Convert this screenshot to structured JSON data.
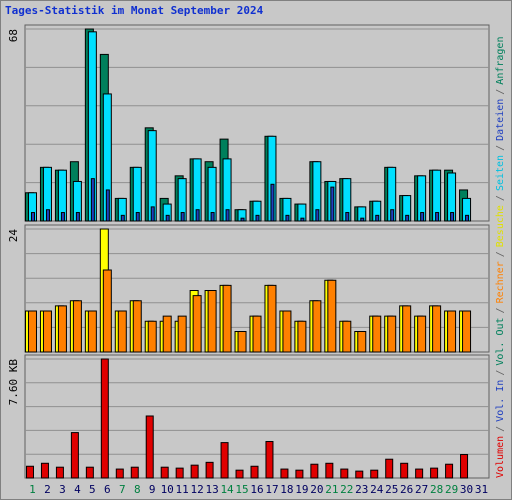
{
  "chart_data": {
    "type": "bar",
    "title": "Tages-Statistik im Monat September 2024",
    "categories": [
      "1",
      "2",
      "3",
      "4",
      "5",
      "6",
      "7",
      "8",
      "9",
      "10",
      "11",
      "12",
      "13",
      "14",
      "15",
      "16",
      "17",
      "18",
      "19",
      "20",
      "21",
      "22",
      "23",
      "24",
      "25",
      "26",
      "27",
      "28",
      "29",
      "30",
      "31"
    ],
    "category_colors": [
      "#008040",
      "#000060",
      "#000060",
      "#000060",
      "#000060",
      "#000060",
      "#008040",
      "#008040",
      "#000060",
      "#000060",
      "#000060",
      "#000060",
      "#000060",
      "#008040",
      "#008040",
      "#000060",
      "#000060",
      "#000060",
      "#000060",
      "#000060",
      "#008040",
      "#008040",
      "#000060",
      "#000060",
      "#000060",
      "#000060",
      "#000060",
      "#008040",
      "#008040",
      "#000060",
      "#000060"
    ],
    "panels": [
      {
        "ylim": [
          0,
          68
        ],
        "yticks": [
          68
        ],
        "series": [
          {
            "name": "Anfragen",
            "color": "#00805c",
            "values": [
              10,
              19,
              18,
              21,
              68,
              59,
              8,
              19,
              33,
              8,
              16,
              22,
              21,
              29,
              4,
              7,
              30,
              8,
              6,
              21,
              14,
              15,
              5,
              7,
              19,
              9,
              16,
              18,
              18,
              11,
              null
            ]
          },
          {
            "name": "Dateien",
            "color": "#00e0ff",
            "values": [
              10,
              19,
              18,
              14,
              67,
              45,
              8,
              19,
              32,
              6,
              15,
              22,
              19,
              22,
              4,
              7,
              30,
              8,
              6,
              21,
              14,
              15,
              5,
              7,
              19,
              9,
              16,
              18,
              17,
              8,
              null
            ]
          },
          {
            "name": "Seiten",
            "color": "#2040c0",
            "values": [
              3,
              4,
              3,
              3,
              15,
              11,
              2,
              3,
              5,
              2,
              3,
              4,
              3,
              4,
              1,
              2,
              13,
              2,
              1,
              4,
              12,
              3,
              1,
              2,
              4,
              2,
              3,
              3,
              3,
              2,
              null
            ]
          }
        ]
      },
      {
        "ylim": [
          0,
          24
        ],
        "yticks": [
          24
        ],
        "series": [
          {
            "name": "Besuche",
            "color": "#ffff00",
            "values": [
              8,
              8,
              9,
              10,
              8,
              24,
              8,
              10,
              6,
              6,
              6,
              12,
              12,
              13,
              4,
              7,
              13,
              8,
              6,
              10,
              14,
              6,
              4,
              7,
              7,
              9,
              7,
              9,
              8,
              8,
              null
            ]
          },
          {
            "name": "Rechner",
            "color": "#ff8000",
            "values": [
              8,
              8,
              9,
              10,
              8,
              16,
              8,
              10,
              6,
              7,
              7,
              11,
              12,
              13,
              4,
              7,
              13,
              8,
              6,
              10,
              14,
              6,
              4,
              7,
              7,
              9,
              7,
              9,
              8,
              8,
              null
            ]
          }
        ]
      },
      {
        "ylim": [
          0,
          7.6
        ],
        "yticks": [
          {
            "value": 7.6,
            "label": "7.60 KB"
          }
        ],
        "series": [
          {
            "name": "Volumen",
            "color": "#e00000",
            "values": [
              0.75,
              0.94,
              0.69,
              2.9,
              0.69,
              7.6,
              0.57,
              0.69,
              3.96,
              0.69,
              0.63,
              0.82,
              1.0,
              2.26,
              0.5,
              0.75,
              2.33,
              0.57,
              0.5,
              0.88,
              0.94,
              0.57,
              0.44,
              0.5,
              1.2,
              0.94,
              0.57,
              0.63,
              0.88,
              1.5,
              null
            ]
          }
        ]
      }
    ],
    "legend_separator": "/",
    "legend": [
      {
        "name": "Volumen",
        "color": "#e00000"
      },
      {
        "name": "Vol. In",
        "color": "#2040c0"
      },
      {
        "name": "Vol. Out",
        "color": "#00805c"
      },
      {
        "name": "Rechner",
        "color": "#ff8000"
      },
      {
        "name": "Besuche",
        "color": "#e0e000"
      },
      {
        "name": "Seiten",
        "color": "#00c0e0"
      },
      {
        "name": "Dateien",
        "color": "#2040c0"
      },
      {
        "name": "Anfragen",
        "color": "#00805c"
      }
    ]
  }
}
